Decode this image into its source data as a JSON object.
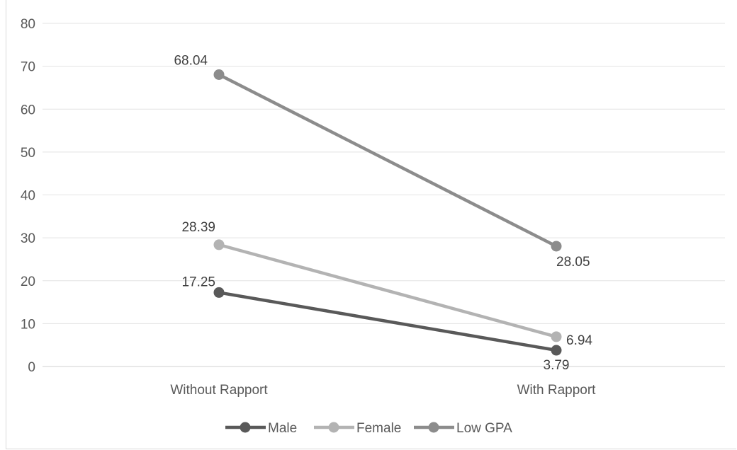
{
  "chart_data": {
    "type": "line",
    "title": "",
    "xlabel": "",
    "ylabel": "",
    "categories": [
      "Without Rapport",
      "With Rapport"
    ],
    "ylim": [
      0,
      80
    ],
    "yticks": [
      0,
      10,
      20,
      30,
      40,
      50,
      60,
      70,
      80
    ],
    "grid": true,
    "legend_position": "bottom",
    "series": [
      {
        "name": "Male",
        "values": [
          17.25,
          3.79
        ],
        "labels": [
          "17.25",
          "3.79"
        ],
        "color": "#595959"
      },
      {
        "name": "Female",
        "values": [
          28.39,
          6.94
        ],
        "labels": [
          "28.39",
          "6.94"
        ],
        "color": "#b3b3b3"
      },
      {
        "name": "Low GPA",
        "values": [
          68.04,
          28.05
        ],
        "labels": [
          "68.04",
          "28.05"
        ],
        "color": "#8c8c8c"
      }
    ]
  }
}
